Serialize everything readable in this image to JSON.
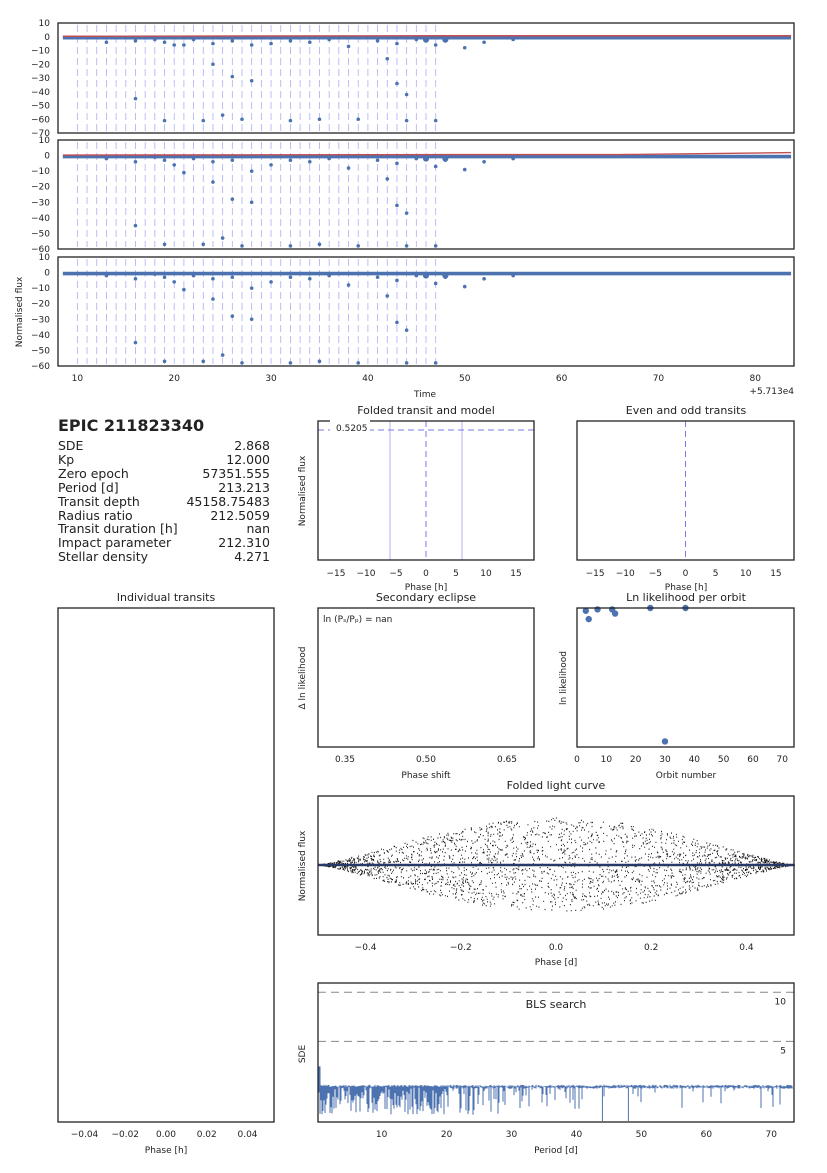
{
  "colors": {
    "data": "#4c72b0",
    "model": "#c44e52",
    "transit_marker": "#7777ee",
    "frame": "#222222",
    "dashed": "#888888",
    "fold": "#111111"
  },
  "info": {
    "title": "EPIC 211823340",
    "rows": [
      {
        "label": "SDE",
        "value": "2.868"
      },
      {
        "label": "Kp",
        "value": "12.000"
      },
      {
        "label": "Zero epoch",
        "value": "57351.555"
      },
      {
        "label": "Period [d]",
        "value": "213.213"
      },
      {
        "label": "Transit depth",
        "value": "45158.75483"
      },
      {
        "label": "Radius ratio",
        "value": "212.5059"
      },
      {
        "label": "Transit duration [h]",
        "value": "nan"
      },
      {
        "label": "Impact parameter",
        "value": "212.310"
      },
      {
        "label": "Stellar density",
        "value": "4.271"
      }
    ]
  },
  "chart_data": [
    {
      "id": "lc1",
      "type": "scatter",
      "xlim": [
        57138,
        57214
      ],
      "ylim": [
        -70,
        10
      ],
      "yticks": [
        "10",
        "0",
        "−10",
        "−20",
        "−30",
        "−40",
        "−50",
        "−60",
        "−70"
      ],
      "series": [
        {
          "color": "#4c72b0",
          "points": [
            [
              57143,
              -4
            ],
            [
              57146,
              -3
            ],
            [
              57148,
              -2
            ],
            [
              57149,
              -4
            ],
            [
              57150,
              -6
            ],
            [
              57152,
              -2
            ],
            [
              57154,
              -5
            ],
            [
              57156,
              -3
            ],
            [
              57158,
              -6
            ],
            [
              57160,
              -5
            ],
            [
              57162,
              -3
            ],
            [
              57164,
              -4
            ],
            [
              57166,
              -2
            ],
            [
              57168,
              -7
            ],
            [
              57171,
              -3
            ],
            [
              57173,
              -5
            ],
            [
              57175,
              -2
            ],
            [
              57177,
              -6
            ],
            [
              57178,
              -3
            ],
            [
              57180,
              -8
            ],
            [
              57182,
              -4
            ],
            [
              57185,
              -2
            ],
            [
              57146,
              -45
            ],
            [
              57149,
              -61
            ],
            [
              57151,
              -6
            ],
            [
              57153,
              -61
            ],
            [
              57154,
              -20
            ],
            [
              57155,
              -57
            ],
            [
              57156,
              -29
            ],
            [
              57157,
              -60
            ],
            [
              57158,
              -32
            ],
            [
              57162,
              -61
            ],
            [
              57165,
              -60
            ],
            [
              57169,
              -60
            ],
            [
              57172,
              -16
            ],
            [
              57173,
              -34
            ],
            [
              57174,
              -42
            ],
            [
              57174,
              -61
            ],
            [
              57177,
              -61
            ]
          ]
        }
      ],
      "markers": [
        57140,
        57141,
        57142,
        57143,
        57144,
        57145,
        57146,
        57147,
        57148,
        57149,
        57150,
        57151,
        57152,
        57153,
        57154,
        57155,
        57156,
        57157,
        57158,
        57159,
        57160,
        57161,
        57162,
        57163,
        57164,
        57165,
        57166,
        57167,
        57168,
        57169,
        57170,
        57171,
        57172,
        57173,
        57174,
        57175,
        57176,
        57177
      ],
      "transit_dots": [
        57176,
        57178
      ],
      "model": true
    },
    {
      "id": "lc2",
      "type": "scatter",
      "xlim": [
        57138,
        57214
      ],
      "ylim": [
        -60,
        10
      ],
      "yticks": [
        "10",
        "0",
        "−10",
        "−20",
        "−30",
        "−40",
        "−50",
        "−60"
      ],
      "series": [
        {
          "color": "#4c72b0",
          "points": [
            [
              57143,
              -2
            ],
            [
              57146,
              -4
            ],
            [
              57148,
              -1
            ],
            [
              57149,
              -3
            ],
            [
              57150,
              -6
            ],
            [
              57152,
              -2
            ],
            [
              57154,
              -4
            ],
            [
              57156,
              -3
            ],
            [
              57158,
              -10
            ],
            [
              57160,
              -6
            ],
            [
              57162,
              -3
            ],
            [
              57164,
              -4
            ],
            [
              57166,
              -2
            ],
            [
              57168,
              -8
            ],
            [
              57171,
              -3
            ],
            [
              57173,
              -5
            ],
            [
              57175,
              -2
            ],
            [
              57177,
              -7
            ],
            [
              57178,
              -3
            ],
            [
              57180,
              -9
            ],
            [
              57182,
              -4
            ],
            [
              57185,
              -2
            ],
            [
              57146,
              -45
            ],
            [
              57149,
              -57
            ],
            [
              57151,
              -11
            ],
            [
              57153,
              -57
            ],
            [
              57154,
              -17
            ],
            [
              57155,
              -53
            ],
            [
              57156,
              -28
            ],
            [
              57157,
              -58
            ],
            [
              57158,
              -30
            ],
            [
              57162,
              -58
            ],
            [
              57165,
              -57
            ],
            [
              57169,
              -58
            ],
            [
              57172,
              -15
            ],
            [
              57173,
              -32
            ],
            [
              57174,
              -37
            ],
            [
              57174,
              -58
            ],
            [
              57177,
              -58
            ]
          ]
        }
      ],
      "markers": [
        57140,
        57141,
        57142,
        57143,
        57144,
        57145,
        57146,
        57147,
        57148,
        57149,
        57150,
        57151,
        57152,
        57153,
        57154,
        57155,
        57156,
        57157,
        57158,
        57159,
        57160,
        57161,
        57162,
        57163,
        57164,
        57165,
        57166,
        57167,
        57168,
        57169,
        57170,
        57171,
        57172,
        57173,
        57174,
        57175,
        57176,
        57177
      ],
      "transit_dots": [
        57176,
        57178
      ],
      "model": true
    },
    {
      "id": "lc3",
      "type": "scatter",
      "xlim": [
        57138,
        57214
      ],
      "ylim": [
        -60,
        10
      ],
      "yticks": [
        "10",
        "0",
        "−10",
        "−20",
        "−30",
        "−40",
        "−50",
        "−60"
      ],
      "ylabel": "Normalised flux",
      "xlabel": "Time",
      "offset_label": "+5.713e4",
      "xticks": [
        {
          "v": 57140,
          "t": "10"
        },
        {
          "v": 57150,
          "t": "20"
        },
        {
          "v": 57160,
          "t": "30"
        },
        {
          "v": 57170,
          "t": "40"
        },
        {
          "v": 57180,
          "t": "50"
        },
        {
          "v": 57190,
          "t": "60"
        },
        {
          "v": 57200,
          "t": "70"
        },
        {
          "v": 57210,
          "t": "80"
        }
      ],
      "series": [
        {
          "color": "#4c72b0",
          "points": [
            [
              57143,
              -2
            ],
            [
              57146,
              -4
            ],
            [
              57148,
              -1
            ],
            [
              57149,
              -3
            ],
            [
              57150,
              -6
            ],
            [
              57152,
              -2
            ],
            [
              57154,
              -4
            ],
            [
              57156,
              -3
            ],
            [
              57158,
              -10
            ],
            [
              57160,
              -6
            ],
            [
              57162,
              -3
            ],
            [
              57164,
              -4
            ],
            [
              57166,
              -2
            ],
            [
              57168,
              -8
            ],
            [
              57171,
              -3
            ],
            [
              57173,
              -5
            ],
            [
              57175,
              -2
            ],
            [
              57177,
              -7
            ],
            [
              57178,
              -3
            ],
            [
              57180,
              -9
            ],
            [
              57182,
              -4
            ],
            [
              57185,
              -2
            ],
            [
              57146,
              -45
            ],
            [
              57149,
              -57
            ],
            [
              57151,
              -11
            ],
            [
              57153,
              -57
            ],
            [
              57154,
              -17
            ],
            [
              57155,
              -53
            ],
            [
              57156,
              -28
            ],
            [
              57157,
              -58
            ],
            [
              57158,
              -30
            ],
            [
              57162,
              -58
            ],
            [
              57165,
              -57
            ],
            [
              57169,
              -58
            ],
            [
              57172,
              -15
            ],
            [
              57173,
              -32
            ],
            [
              57174,
              -37
            ],
            [
              57174,
              -58
            ],
            [
              57177,
              -58
            ]
          ]
        }
      ],
      "markers": [
        57140,
        57141,
        57142,
        57143,
        57144,
        57145,
        57146,
        57147,
        57148,
        57149,
        57150,
        57151,
        57152,
        57153,
        57154,
        57155,
        57156,
        57157,
        57158,
        57159,
        57160,
        57161,
        57162,
        57163,
        57164,
        57165,
        57166,
        57167,
        57168,
        57169,
        57170,
        57171,
        57172,
        57173,
        57174,
        57175,
        57176,
        57177
      ],
      "transit_dots": [
        57176,
        57178
      ],
      "model": false
    },
    {
      "id": "folded",
      "type": "line",
      "title": "Folded transit and model",
      "xlabel": "Phase [h]",
      "ylabel": "Normalised flux",
      "xlim": [
        -18,
        18
      ],
      "xticks": [
        -15,
        -10,
        -5,
        0,
        5,
        10,
        15
      ],
      "annotation": "0.5205",
      "vlines": [
        -6,
        6
      ]
    },
    {
      "id": "evenodd",
      "type": "line",
      "title": "Even and odd transits",
      "xlabel": "Phase [h]",
      "xlim": [
        -18,
        18
      ],
      "xticks": [
        -15,
        -10,
        -5,
        0,
        5,
        10,
        15
      ]
    },
    {
      "id": "indiv",
      "type": "line",
      "title": "Individual transits",
      "xlabel": "Phase [h]",
      "xlim": [
        -0.053,
        0.053
      ],
      "xticks": [
        {
          "v": -0.04,
          "t": "−0.04"
        },
        {
          "v": -0.02,
          "t": "−0.02"
        },
        {
          "v": 0,
          "t": "0.00"
        },
        {
          "v": 0.02,
          "t": "0.02"
        },
        {
          "v": 0.04,
          "t": "0.04"
        }
      ]
    },
    {
      "id": "secondary",
      "type": "line",
      "title": "Secondary eclipse",
      "xlabel": "Phase shift",
      "ylabel": "Δ ln likelihood",
      "xlim": [
        0.3,
        0.7
      ],
      "xticks": [
        {
          "v": 0.35,
          "t": "0.35"
        },
        {
          "v": 0.5,
          "t": "0.50"
        },
        {
          "v": 0.65,
          "t": "0.65"
        }
      ],
      "annotation": "ln (Pₛ/Pₚ) = nan"
    },
    {
      "id": "lnlike",
      "type": "scatter",
      "title": "Ln likelihood per orbit",
      "xlabel": "Orbit number",
      "ylabel": "ln likelihood",
      "xlim": [
        0,
        74
      ],
      "ylim": [
        -100,
        0
      ],
      "xticks": [
        0,
        10,
        20,
        30,
        40,
        50,
        60,
        70
      ],
      "points": [
        [
          3,
          -2
        ],
        [
          4,
          -8
        ],
        [
          7,
          -1
        ],
        [
          12,
          -1
        ],
        [
          13,
          -4
        ],
        [
          25,
          0
        ],
        [
          30,
          -96
        ],
        [
          37,
          0
        ]
      ]
    },
    {
      "id": "foldlc",
      "type": "scatter",
      "title": "Folded light curve",
      "xlabel": "Phase [d]",
      "ylabel": "Normalised flux",
      "xlim": [
        -0.5,
        0.5
      ],
      "xticks": [
        {
          "v": -0.4,
          "t": "−0.4"
        },
        {
          "v": -0.2,
          "t": "−0.2"
        },
        {
          "v": 0,
          "t": "0.0"
        },
        {
          "v": 0.2,
          "t": "0.2"
        },
        {
          "v": 0.4,
          "t": "0.4"
        }
      ]
    },
    {
      "id": "bls",
      "type": "line",
      "title": "BLS search",
      "xlabel": "Period [d]",
      "ylabel": "SDE",
      "xlim": [
        0.2,
        73.5
      ],
      "ylim": [
        -3,
        12
      ],
      "xticks": [
        10,
        20,
        30,
        40,
        50,
        60,
        70
      ],
      "hlines": [
        {
          "v": 11,
          "t": "10"
        },
        {
          "v": 5.7,
          "t": "5"
        }
      ]
    }
  ]
}
